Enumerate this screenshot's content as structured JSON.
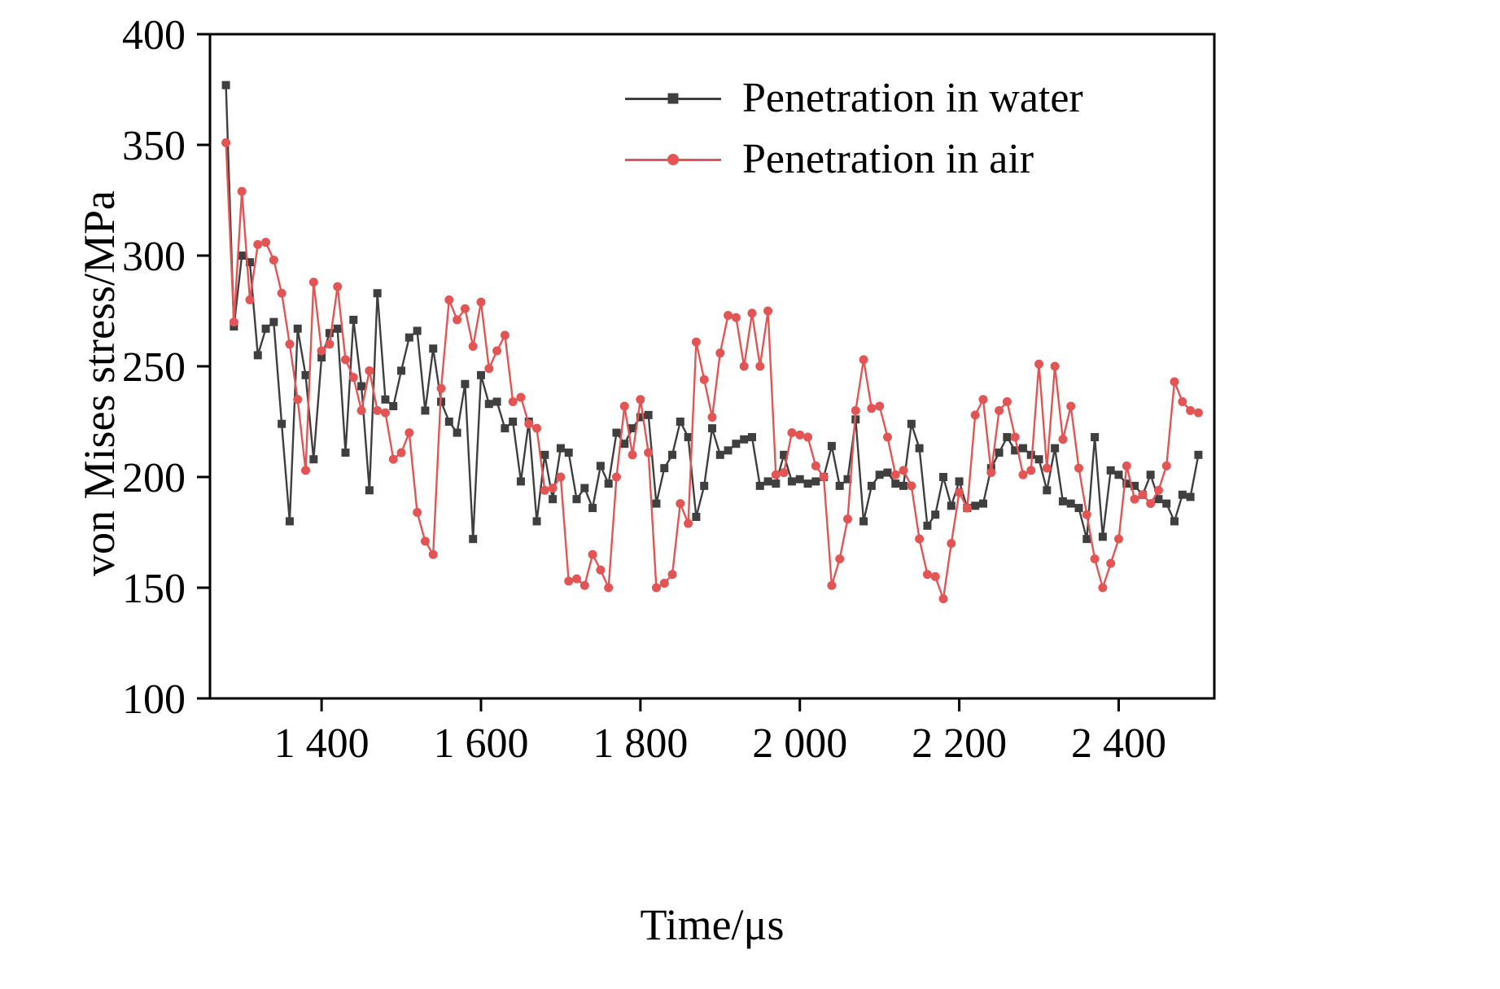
{
  "figure": {
    "background": "#ffffff",
    "xlabel": "Time/μs",
    "ylabel": "von Mises stress/MPa"
  },
  "legend": {
    "position": "upper-right-inside",
    "entries": [
      {
        "label": "Penetration in water",
        "color": "#3f3f3f",
        "marker": "square"
      },
      {
        "label": "Penetration in air",
        "color": "#e25554",
        "marker": "circle"
      }
    ]
  },
  "chart_data": {
    "type": "line",
    "title": "",
    "xlabel": "Time/μs",
    "ylabel": "von Mises stress/MPa",
    "xlim": [
      1260,
      2520
    ],
    "ylim": [
      100,
      400
    ],
    "grid": false,
    "frame": "full-box",
    "legend_position": "upper right inside",
    "xticks": {
      "values": [
        1400,
        1600,
        1800,
        2000,
        2200,
        2400
      ],
      "labels": [
        "1 400",
        "1 600",
        "1 800",
        "2 000",
        "2 200",
        "2 400"
      ]
    },
    "yticks": {
      "values": [
        100,
        150,
        200,
        250,
        300,
        350,
        400
      ],
      "labels": [
        "100",
        "150",
        "200",
        "250",
        "300",
        "350",
        "400"
      ]
    },
    "x_start": 1280,
    "x_step": 10,
    "series": [
      {
        "name": "Penetration in water",
        "color": "#3f3f3f",
        "marker": "square",
        "values": [
          377,
          268,
          300,
          297,
          255,
          267,
          270,
          224,
          180,
          267,
          246,
          208,
          254,
          265,
          267,
          211,
          271,
          241,
          194,
          283,
          235,
          232,
          248,
          263,
          266,
          230,
          258,
          234,
          225,
          220,
          242,
          172,
          246,
          233,
          234,
          222,
          225,
          198,
          225,
          180,
          210,
          190,
          213,
          211,
          190,
          195,
          186,
          205,
          197,
          220,
          215,
          222,
          227,
          228,
          188,
          204,
          210,
          225,
          218,
          182,
          196,
          222,
          210,
          212,
          215,
          217,
          218,
          196,
          198,
          197,
          210,
          198,
          199,
          197,
          198,
          200,
          214,
          196,
          199,
          226,
          180,
          196,
          201,
          202,
          197,
          196,
          224,
          213,
          178,
          183,
          200,
          187,
          198,
          186,
          187,
          188,
          204,
          211,
          218,
          212,
          213,
          210,
          208,
          194,
          213,
          189,
          188,
          186,
          172,
          218,
          173,
          203,
          201,
          197,
          196,
          192,
          201,
          190,
          188,
          180,
          192,
          191,
          210
        ]
      },
      {
        "name": "Penetration in air",
        "color": "#e25554",
        "marker": "circle",
        "values": [
          351,
          270,
          329,
          280,
          305,
          306,
          298,
          283,
          260,
          235,
          203,
          288,
          257,
          260,
          286,
          253,
          245,
          230,
          248,
          230,
          229,
          208,
          211,
          220,
          184,
          171,
          165,
          240,
          280,
          271,
          276,
          259,
          279,
          249,
          257,
          264,
          234,
          236,
          224,
          222,
          194,
          195,
          200,
          153,
          154,
          151,
          165,
          158,
          150,
          200,
          232,
          210,
          235,
          211,
          150,
          152,
          156,
          188,
          179,
          261,
          244,
          227,
          256,
          273,
          272,
          250,
          274,
          250,
          275,
          201,
          202,
          220,
          219,
          218,
          205,
          200,
          151,
          163,
          181,
          230,
          253,
          231,
          232,
          218,
          201,
          203,
          196,
          172,
          156,
          155,
          145,
          170,
          193,
          186,
          228,
          235,
          202,
          230,
          234,
          218,
          201,
          203,
          251,
          204,
          250,
          217,
          232,
          204,
          183,
          163,
          150,
          161,
          172,
          205,
          190,
          192,
          188,
          194,
          205,
          243,
          234,
          230,
          229
        ]
      }
    ]
  }
}
